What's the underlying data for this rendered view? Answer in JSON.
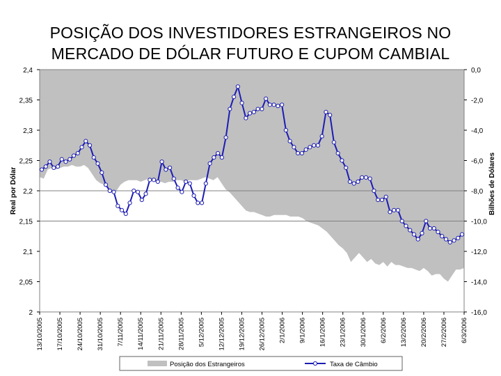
{
  "title_lines": [
    "POSIÇÃO DOS INVESTIDORES ESTRANGEIROS NO",
    "MERCADO DE DÓLAR FUTURO E CUPOM CAMBIAL"
  ],
  "chart_data": {
    "type": "line+area",
    "title": "POSIÇÃO DOS INVESTIDORES ESTRANGEIROS NO MERCADO DE DÓLAR FUTURO E CUPOM CAMBIAL",
    "xlabel": "",
    "ylabel_left": "Real por Dólar",
    "ylabel_right": "Bilhões de Dólares",
    "ylim_left": [
      2.0,
      2.4
    ],
    "ylim_right": [
      -16.0,
      0.0
    ],
    "left_ticks": [
      "2,4",
      "2,35",
      "2,3",
      "2,25",
      "2,2",
      "2,15",
      "2,1",
      "2,05",
      "2"
    ],
    "right_ticks": [
      "0,0",
      "-2,0",
      "-4,0",
      "-6,0",
      "-8,0",
      "-10,0",
      "-12,0",
      "-14,0",
      "-16,0"
    ],
    "x_tick_labels": [
      "13/10/2005",
      "17/10/2005",
      "24/10/2005",
      "31/10/2005",
      "7/11/2005",
      "14/11/2005",
      "21/11/2005",
      "28/11/2005",
      "5/12/2005",
      "12/12/2005",
      "19/12/2005",
      "26/12/2005",
      "2/1/2006",
      "9/1/2006",
      "16/1/2006",
      "23/1/2006",
      "30/1/2006",
      "6/2/2006",
      "13/2/2006",
      "20/2/2006",
      "27/2/2006",
      "6/3/2006"
    ],
    "grid": "horizontal lines at 2,2 and 2,15",
    "legend_position": "bottom",
    "series": [
      {
        "name": "Posição dos Estrangeiros",
        "axis": "right",
        "kind": "area",
        "color": "#c0c0c0",
        "values": [
          -7.1,
          -7.2,
          -6.6,
          -6.5,
          -6.6,
          -6.5,
          -6.4,
          -6.4,
          -6.3,
          -6.4,
          -6.4,
          -6.3,
          -6.5,
          -6.9,
          -7.3,
          -7.5,
          -7.6,
          -7.8,
          -8.0,
          -8.0,
          -7.6,
          -7.4,
          -7.3,
          -7.3,
          -7.3,
          -7.4,
          -7.3,
          -7.2,
          -7.3,
          -7.4,
          -7.4,
          -7.5,
          -7.4,
          -7.4,
          -7.3,
          -7.3,
          -7.4,
          -7.3,
          -7.3,
          -7.3,
          -7.2,
          -7.1,
          -7.2,
          -7.3,
          -7.1,
          -7.5,
          -7.9,
          -8.1,
          -8.4,
          -8.7,
          -9.0,
          -9.3,
          -9.4,
          -9.4,
          -9.5,
          -9.6,
          -9.7,
          -9.7,
          -9.6,
          -9.6,
          -9.6,
          -9.6,
          -9.7,
          -9.7,
          -9.7,
          -9.8,
          -10.0,
          -10.1,
          -10.2,
          -10.3,
          -10.5,
          -10.7,
          -11.0,
          -11.3,
          -11.6,
          -11.8,
          -12.1,
          -12.7,
          -12.4,
          -12.1,
          -12.4,
          -12.7,
          -12.5,
          -12.8,
          -12.9,
          -12.7,
          -13.0,
          -12.7,
          -12.9,
          -12.9,
          -13.0,
          -13.1,
          -13.1,
          -13.2,
          -13.3,
          -13.1,
          -13.3,
          -13.6,
          -13.5,
          -13.5,
          -13.8,
          -14.0,
          -13.6,
          -13.2,
          -13.2,
          -13.1
        ]
      },
      {
        "name": "Taxa de Câmbio",
        "axis": "left",
        "kind": "line",
        "color": "#1c1cb4",
        "values": [
          2.235,
          2.24,
          2.248,
          2.238,
          2.24,
          2.252,
          2.248,
          2.252,
          2.258,
          2.262,
          2.272,
          2.282,
          2.275,
          2.255,
          2.245,
          2.23,
          2.21,
          2.2,
          2.198,
          2.175,
          2.168,
          2.162,
          2.18,
          2.2,
          2.198,
          2.185,
          2.195,
          2.218,
          2.218,
          2.215,
          2.248,
          2.235,
          2.238,
          2.22,
          2.205,
          2.198,
          2.215,
          2.212,
          2.192,
          2.18,
          2.18,
          2.212,
          2.245,
          2.255,
          2.262,
          2.255,
          2.288,
          2.335,
          2.355,
          2.372,
          2.345,
          2.32,
          2.328,
          2.33,
          2.335,
          2.335,
          2.352,
          2.342,
          2.342,
          2.34,
          2.342,
          2.3,
          2.282,
          2.272,
          2.262,
          2.262,
          2.268,
          2.272,
          2.275,
          2.275,
          2.29,
          2.33,
          2.325,
          2.28,
          2.262,
          2.25,
          2.238,
          2.215,
          2.212,
          2.215,
          2.222,
          2.222,
          2.22,
          2.2,
          2.185,
          2.185,
          2.19,
          2.165,
          2.168,
          2.168,
          2.15,
          2.142,
          2.135,
          2.128,
          2.12,
          2.13,
          2.15,
          2.138,
          2.138,
          2.132,
          2.125,
          2.12,
          2.115,
          2.118,
          2.122,
          2.128
        ]
      }
    ]
  }
}
